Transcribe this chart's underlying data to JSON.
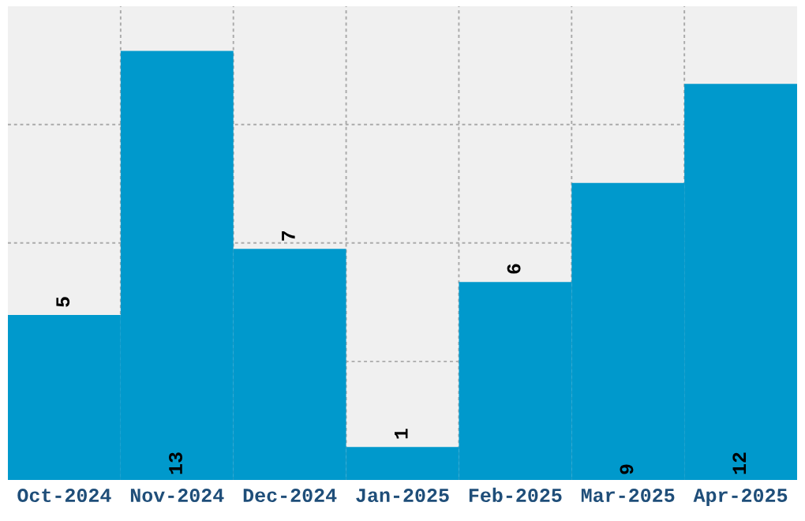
{
  "chart_data": {
    "type": "bar",
    "categories": [
      "Oct-2024",
      "Nov-2024",
      "Dec-2024",
      "Jan-2025",
      "Feb-2025",
      "Mar-2025",
      "Apr-2025"
    ],
    "values": [
      5,
      13,
      7,
      1,
      6,
      9,
      12
    ],
    "color": "#0099cc",
    "relative": false,
    "ylim": [
      0,
      14.35
    ],
    "yticks": [
      {
        "value": 3.59,
        "label": null
      },
      {
        "value": 7.18,
        "label": null
      },
      {
        "value": 10.77,
        "label": null
      }
    ],
    "data_labels": true,
    "grid": true,
    "tick_labels": "x"
  }
}
